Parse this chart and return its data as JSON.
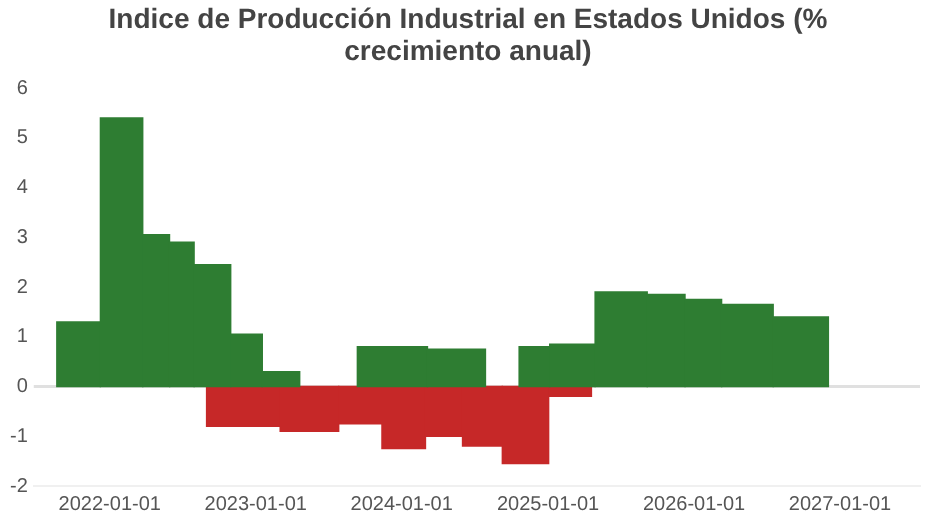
{
  "chart_data": {
    "type": "bar",
    "title": "Indice de Producción Industrial en Estados Unidos (% crecimiento anual)",
    "xlim": [
      "2021-06-25",
      "2027-07-20"
    ],
    "xticks": [
      "2022-01-01",
      "2023-01-01",
      "2024-01-01",
      "2025-01-01",
      "2026-01-01",
      "2027-01-01"
    ],
    "ylim": [
      -2,
      6
    ],
    "yticks": [
      -2,
      -1,
      0,
      1,
      2,
      3,
      4,
      5,
      6
    ],
    "grid": false,
    "ref_lines": [
      {
        "axis": "y",
        "value": 0,
        "color": "#e0e0e0"
      }
    ],
    "series": [
      {
        "color": "#2e7d32",
        "x": [
          "2021-10-15",
          "2022-02-01",
          "2022-05-15",
          "2022-06-15",
          "2022-09-15",
          "2022-12-15",
          "2023-02-20",
          "2023-06-20",
          "2023-12-05",
          "2024-06-05",
          "2024-09-20",
          "2024-11-20",
          "2025-02-20",
          "2025-07-05",
          "2025-11-08",
          "2026-01-10",
          "2026-05-10",
          "2026-09-25"
        ],
        "values": [
          1.3,
          5.4,
          3.05,
          2.9,
          2.45,
          1.05,
          0.3,
          null,
          0.8,
          0.75,
          null,
          0.8,
          0.85,
          1.9,
          1.85,
          1.75,
          1.65,
          1.4
        ]
      },
      {
        "color": "#c62828",
        "x": [
          "2022-12-01",
          "2023-06-03",
          "2023-09-20",
          "2024-01-05",
          "2024-04-25",
          "2024-07-08",
          "2024-11-10",
          "2025-02-25"
        ],
        "values": [
          -0.8,
          -0.9,
          -0.75,
          -1.25,
          -1.0,
          -1.2,
          -1.55,
          -0.2
        ]
      }
    ]
  }
}
